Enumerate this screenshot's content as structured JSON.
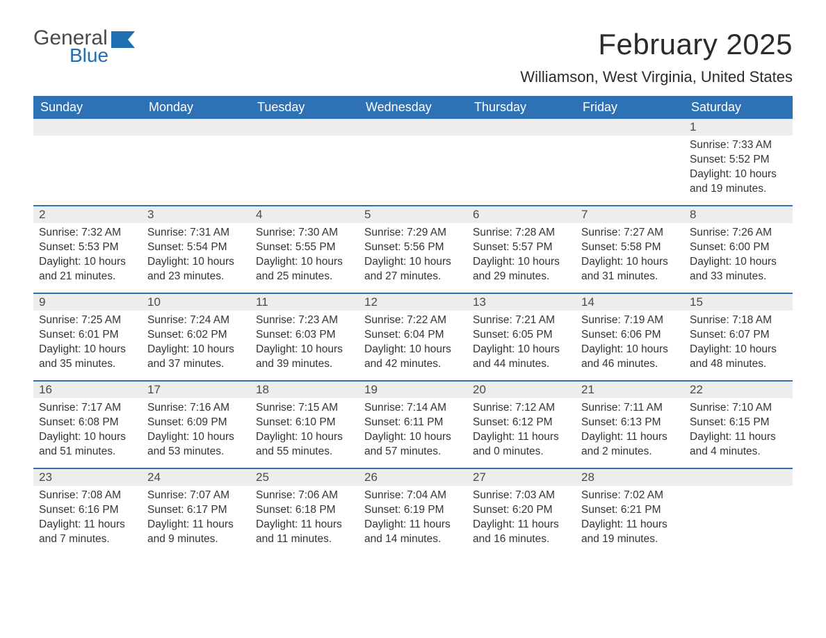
{
  "logo": {
    "word1": "General",
    "word2": "Blue"
  },
  "title": "February 2025",
  "location": "Williamson, West Virginia, United States",
  "header_bg": "#2e72b5",
  "header_fg": "#ffffff",
  "daynum_bg": "#ededed",
  "text_color": "#333333",
  "weekdays": [
    "Sunday",
    "Monday",
    "Tuesday",
    "Wednesday",
    "Thursday",
    "Friday",
    "Saturday"
  ],
  "weeks": [
    [
      null,
      null,
      null,
      null,
      null,
      null,
      {
        "n": "1",
        "sunrise": "Sunrise: 7:33 AM",
        "sunset": "Sunset: 5:52 PM",
        "day1": "Daylight: 10 hours",
        "day2": "and 19 minutes."
      }
    ],
    [
      {
        "n": "2",
        "sunrise": "Sunrise: 7:32 AM",
        "sunset": "Sunset: 5:53 PM",
        "day1": "Daylight: 10 hours",
        "day2": "and 21 minutes."
      },
      {
        "n": "3",
        "sunrise": "Sunrise: 7:31 AM",
        "sunset": "Sunset: 5:54 PM",
        "day1": "Daylight: 10 hours",
        "day2": "and 23 minutes."
      },
      {
        "n": "4",
        "sunrise": "Sunrise: 7:30 AM",
        "sunset": "Sunset: 5:55 PM",
        "day1": "Daylight: 10 hours",
        "day2": "and 25 minutes."
      },
      {
        "n": "5",
        "sunrise": "Sunrise: 7:29 AM",
        "sunset": "Sunset: 5:56 PM",
        "day1": "Daylight: 10 hours",
        "day2": "and 27 minutes."
      },
      {
        "n": "6",
        "sunrise": "Sunrise: 7:28 AM",
        "sunset": "Sunset: 5:57 PM",
        "day1": "Daylight: 10 hours",
        "day2": "and 29 minutes."
      },
      {
        "n": "7",
        "sunrise": "Sunrise: 7:27 AM",
        "sunset": "Sunset: 5:58 PM",
        "day1": "Daylight: 10 hours",
        "day2": "and 31 minutes."
      },
      {
        "n": "8",
        "sunrise": "Sunrise: 7:26 AM",
        "sunset": "Sunset: 6:00 PM",
        "day1": "Daylight: 10 hours",
        "day2": "and 33 minutes."
      }
    ],
    [
      {
        "n": "9",
        "sunrise": "Sunrise: 7:25 AM",
        "sunset": "Sunset: 6:01 PM",
        "day1": "Daylight: 10 hours",
        "day2": "and 35 minutes."
      },
      {
        "n": "10",
        "sunrise": "Sunrise: 7:24 AM",
        "sunset": "Sunset: 6:02 PM",
        "day1": "Daylight: 10 hours",
        "day2": "and 37 minutes."
      },
      {
        "n": "11",
        "sunrise": "Sunrise: 7:23 AM",
        "sunset": "Sunset: 6:03 PM",
        "day1": "Daylight: 10 hours",
        "day2": "and 39 minutes."
      },
      {
        "n": "12",
        "sunrise": "Sunrise: 7:22 AM",
        "sunset": "Sunset: 6:04 PM",
        "day1": "Daylight: 10 hours",
        "day2": "and 42 minutes."
      },
      {
        "n": "13",
        "sunrise": "Sunrise: 7:21 AM",
        "sunset": "Sunset: 6:05 PM",
        "day1": "Daylight: 10 hours",
        "day2": "and 44 minutes."
      },
      {
        "n": "14",
        "sunrise": "Sunrise: 7:19 AM",
        "sunset": "Sunset: 6:06 PM",
        "day1": "Daylight: 10 hours",
        "day2": "and 46 minutes."
      },
      {
        "n": "15",
        "sunrise": "Sunrise: 7:18 AM",
        "sunset": "Sunset: 6:07 PM",
        "day1": "Daylight: 10 hours",
        "day2": "and 48 minutes."
      }
    ],
    [
      {
        "n": "16",
        "sunrise": "Sunrise: 7:17 AM",
        "sunset": "Sunset: 6:08 PM",
        "day1": "Daylight: 10 hours",
        "day2": "and 51 minutes."
      },
      {
        "n": "17",
        "sunrise": "Sunrise: 7:16 AM",
        "sunset": "Sunset: 6:09 PM",
        "day1": "Daylight: 10 hours",
        "day2": "and 53 minutes."
      },
      {
        "n": "18",
        "sunrise": "Sunrise: 7:15 AM",
        "sunset": "Sunset: 6:10 PM",
        "day1": "Daylight: 10 hours",
        "day2": "and 55 minutes."
      },
      {
        "n": "19",
        "sunrise": "Sunrise: 7:14 AM",
        "sunset": "Sunset: 6:11 PM",
        "day1": "Daylight: 10 hours",
        "day2": "and 57 minutes."
      },
      {
        "n": "20",
        "sunrise": "Sunrise: 7:12 AM",
        "sunset": "Sunset: 6:12 PM",
        "day1": "Daylight: 11 hours",
        "day2": "and 0 minutes."
      },
      {
        "n": "21",
        "sunrise": "Sunrise: 7:11 AM",
        "sunset": "Sunset: 6:13 PM",
        "day1": "Daylight: 11 hours",
        "day2": "and 2 minutes."
      },
      {
        "n": "22",
        "sunrise": "Sunrise: 7:10 AM",
        "sunset": "Sunset: 6:15 PM",
        "day1": "Daylight: 11 hours",
        "day2": "and 4 minutes."
      }
    ],
    [
      {
        "n": "23",
        "sunrise": "Sunrise: 7:08 AM",
        "sunset": "Sunset: 6:16 PM",
        "day1": "Daylight: 11 hours",
        "day2": "and 7 minutes."
      },
      {
        "n": "24",
        "sunrise": "Sunrise: 7:07 AM",
        "sunset": "Sunset: 6:17 PM",
        "day1": "Daylight: 11 hours",
        "day2": "and 9 minutes."
      },
      {
        "n": "25",
        "sunrise": "Sunrise: 7:06 AM",
        "sunset": "Sunset: 6:18 PM",
        "day1": "Daylight: 11 hours",
        "day2": "and 11 minutes."
      },
      {
        "n": "26",
        "sunrise": "Sunrise: 7:04 AM",
        "sunset": "Sunset: 6:19 PM",
        "day1": "Daylight: 11 hours",
        "day2": "and 14 minutes."
      },
      {
        "n": "27",
        "sunrise": "Sunrise: 7:03 AM",
        "sunset": "Sunset: 6:20 PM",
        "day1": "Daylight: 11 hours",
        "day2": "and 16 minutes."
      },
      {
        "n": "28",
        "sunrise": "Sunrise: 7:02 AM",
        "sunset": "Sunset: 6:21 PM",
        "day1": "Daylight: 11 hours",
        "day2": "and 19 minutes."
      },
      null
    ]
  ]
}
